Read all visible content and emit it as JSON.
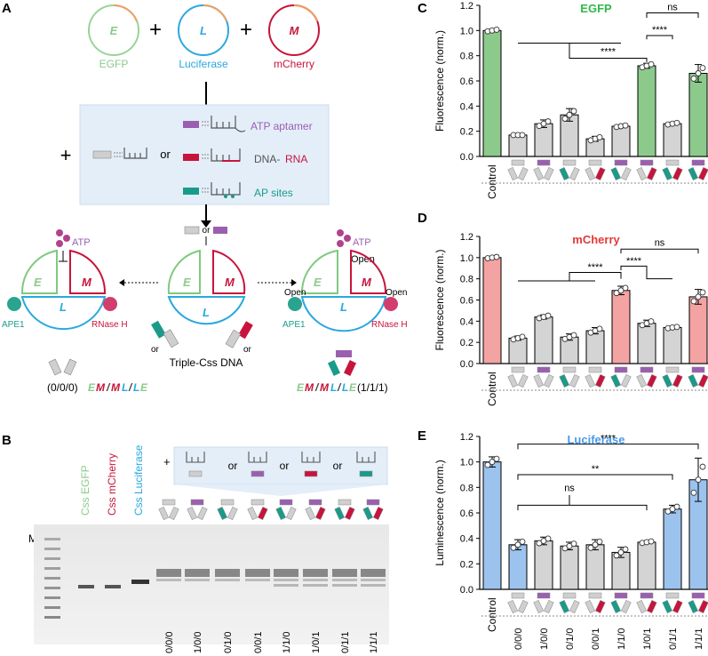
{
  "panels": {
    "A": "A",
    "B": "B",
    "C": "C",
    "D": "D",
    "E": "E"
  },
  "panelA": {
    "plasmids": [
      {
        "letter": "E",
        "name": "EGFP",
        "color": "#7fc97f"
      },
      {
        "letter": "L",
        "name": "Luciferase",
        "color": "#29a8e0"
      },
      {
        "letter": "M",
        "name": "mCherry",
        "color": "#c8143c"
      }
    ],
    "plus": "+",
    "or": "or",
    "variants": [
      "ATP aptamer",
      "DNA-",
      "RNA",
      "AP sites"
    ],
    "atp": "ATP",
    "open": "Open",
    "ape1": "APE1",
    "rnaseh": "RNase H",
    "center_label": "Triple-Css DNA",
    "left_state": "(0/0/0)",
    "right_state": "(1/1/1)",
    "logic": [
      "E",
      "M",
      "/",
      "M",
      "L",
      "/",
      "L",
      "E"
    ]
  },
  "panelB": {
    "ladder": "M",
    "lanes": [
      "Css EGFP",
      "Css mCherry",
      "Css Luciferase"
    ],
    "codes": [
      "0/0/0",
      "1/0/0",
      "0/1/0",
      "0/0/1",
      "1/1/0",
      "1/0/1",
      "0/1/1",
      "1/1/1"
    ]
  },
  "colors": {
    "egfp": "#8cca8c",
    "mcherry": "#f4a3a3",
    "luc": "#9cc3ee",
    "gray": "#d4d4d4"
  },
  "chart_data": [
    {
      "type": "bar",
      "panel": "C",
      "title": "EGFP",
      "ylabel": "Fluorescence (norm.)",
      "ylim": [
        0,
        1.2
      ],
      "yticks": [
        "0.0",
        "0.2",
        "0.4",
        "0.6",
        "0.8",
        "1.0",
        "1.2"
      ],
      "categories": [
        "Control",
        "0/0/0",
        "1/0/0",
        "0/1/0",
        "0/0/1",
        "1/1/0",
        "1/0/1",
        "0/1/1",
        "1/1/1"
      ],
      "values": [
        1.0,
        0.17,
        0.26,
        0.33,
        0.14,
        0.24,
        0.72,
        0.26,
        0.66
      ],
      "errors": [
        0.01,
        0.0,
        0.03,
        0.05,
        0.02,
        0.01,
        0.02,
        0.01,
        0.07
      ],
      "significance": [
        "****",
        "****",
        "ns"
      ]
    },
    {
      "type": "bar",
      "panel": "D",
      "title": "mCherry",
      "ylabel": "Fluorescence (norm.)",
      "ylim": [
        0,
        1.2
      ],
      "yticks": [
        "0.0",
        "0.2",
        "0.4",
        "0.6",
        "0.8",
        "1.0",
        "1.2"
      ],
      "categories": [
        "Control",
        "0/0/0",
        "1/0/0",
        "0/1/0",
        "0/0/1",
        "1/1/0",
        "1/0/1",
        "0/1/1",
        "1/1/1"
      ],
      "values": [
        1.0,
        0.24,
        0.44,
        0.25,
        0.31,
        0.69,
        0.38,
        0.34,
        0.63
      ],
      "errors": [
        0.01,
        0.02,
        0.02,
        0.03,
        0.03,
        0.04,
        0.03,
        0.01,
        0.07
      ],
      "significance": [
        "****",
        "****",
        "ns"
      ]
    },
    {
      "type": "bar",
      "panel": "E",
      "title": "Luciferase",
      "ylabel": "Luminescence (norm.)",
      "ylim": [
        0,
        1.2
      ],
      "yticks": [
        "0.0",
        "0.2",
        "0.4",
        "0.6",
        "0.8",
        "1.0",
        "1.2"
      ],
      "categories": [
        "Control",
        "0/0/0",
        "1/0/0",
        "0/1/0",
        "0/0/1",
        "1/1/0",
        "1/0/1",
        "0/1/1",
        "1/1/1"
      ],
      "values": [
        1.0,
        0.35,
        0.38,
        0.34,
        0.35,
        0.29,
        0.37,
        0.63,
        0.86
      ],
      "errors": [
        0.04,
        0.04,
        0.03,
        0.03,
        0.04,
        0.04,
        0.01,
        0.03,
        0.17
      ],
      "significance": [
        "****",
        "**",
        "ns"
      ]
    }
  ]
}
